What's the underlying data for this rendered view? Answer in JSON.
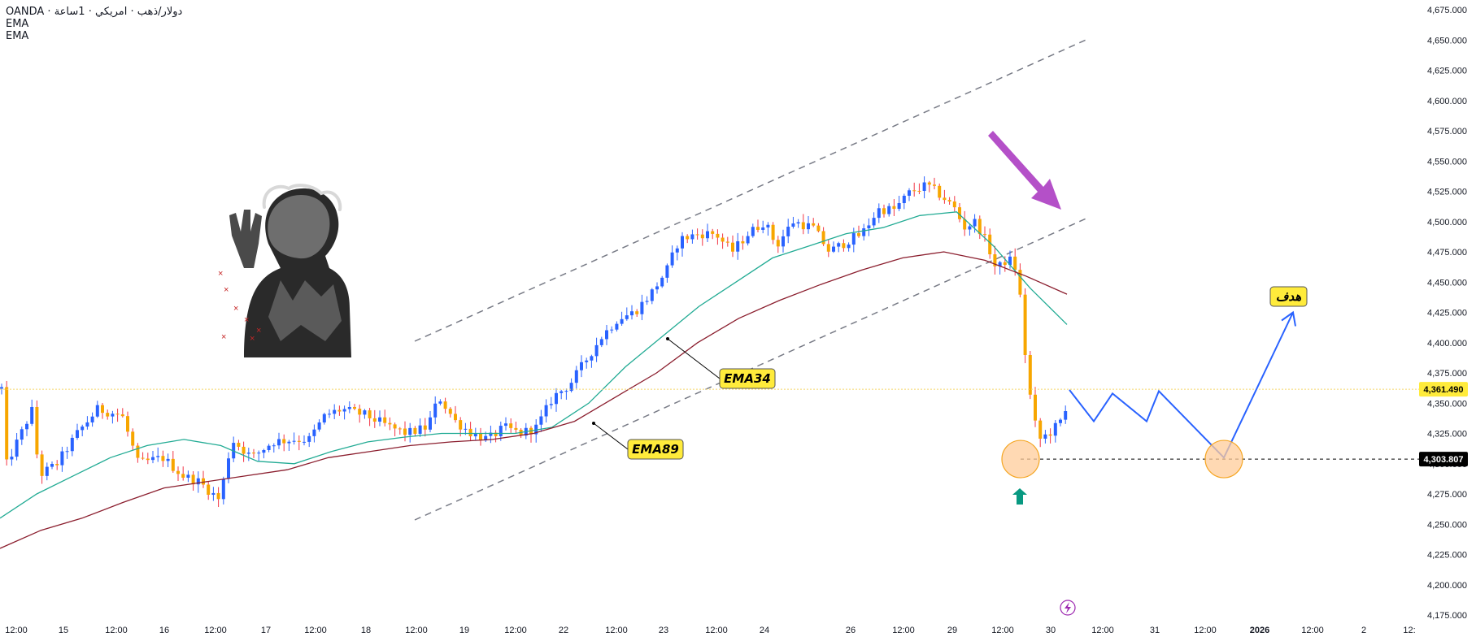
{
  "header": {
    "symbol_line": "OANDA · دولار/ذهب · امريكي · 1ساعة",
    "indicator1": "EMA",
    "indicator2": "EMA"
  },
  "colors": {
    "bull": "#2962ff",
    "bear": "#f7a600",
    "wick_bull": "#2962ff",
    "wick_bear": "#f23645",
    "ema34": "#22ab94",
    "ema89": "#8b1e2e",
    "channel": "#787b86",
    "projection": "#2962ff",
    "arrow_purple": "#b450c8",
    "arrow_green": "#089981",
    "label_bg": "#ffeb3b",
    "circle_fill": "#ffcc99",
    "circle_stroke": "#f5a623",
    "current_price_bg": "#ffeb3b",
    "level_bg": "#000000"
  },
  "labels": {
    "ema34": "EMA34",
    "ema89": "EMA89",
    "target": "هدف"
  },
  "icons": {
    "einstein": "einstein-illustration",
    "bolt": "lightning-icon",
    "down_arrow": "purple-down-arrow-icon",
    "up_arrow": "green-up-arrow-icon"
  },
  "price_axis": {
    "ticks": [
      "4,675.000",
      "4,650.000",
      "4,625.000",
      "4,600.000",
      "4,575.000",
      "4,550.000",
      "4,525.000",
      "4,500.000",
      "4,475.000",
      "4,450.000",
      "4,425.000",
      "4,400.000",
      "4,375.000",
      "4,350.000",
      "4,325.000",
      "4,300.000",
      "4,275.000",
      "4,250.000",
      "4,225.000",
      "4,200.000",
      "4,175.000"
    ],
    "current_price": "4,361.490",
    "level_price": "4,303.807"
  },
  "time_axis": {
    "ticks": [
      "12:00",
      "15",
      "12:00",
      "16",
      "12:00",
      "17",
      "12:00",
      "18",
      "12:00",
      "19",
      "12:00",
      "22",
      "12:00",
      "23",
      "12:00",
      "24",
      "26",
      "12:00",
      "29",
      "12:00",
      "30",
      "12:00",
      "31",
      "12:00",
      "2026",
      "12:00",
      "2",
      "12:"
    ],
    "bold": [
      "2026"
    ]
  },
  "chart_data": {
    "type": "candlestick",
    "symbol": "OANDA · دولار/ذهب · امريكي · 1ساعة",
    "ylim": [
      4175,
      4675
    ],
    "series": [
      {
        "name": "EMA34",
        "values": [
          4255,
          4275,
          4290,
          4305,
          4315,
          4320,
          4315,
          4302,
          4300,
          4310,
          4318,
          4322,
          4325,
          4325,
          4325,
          4330,
          4350,
          4380,
          4405,
          4430,
          4450,
          4470,
          4480,
          4490,
          4495,
          4505,
          4508,
          4480,
          4445,
          4415
        ]
      },
      {
        "name": "EMA89",
        "values": [
          4230,
          4245,
          4255,
          4268,
          4280,
          4285,
          4290,
          4295,
          4305,
          4310,
          4315,
          4318,
          4320,
          4325,
          4335,
          4355,
          4375,
          4400,
          4420,
          4435,
          4448,
          4460,
          4470,
          4475,
          4468,
          4455,
          4440
        ]
      }
    ],
    "annotations": {
      "current_price": 4361.49,
      "support_level": 4303.807,
      "target_label": "هدف",
      "projection_path": [
        4361,
        4335,
        4358,
        4335,
        4360,
        4305,
        4425
      ]
    }
  }
}
